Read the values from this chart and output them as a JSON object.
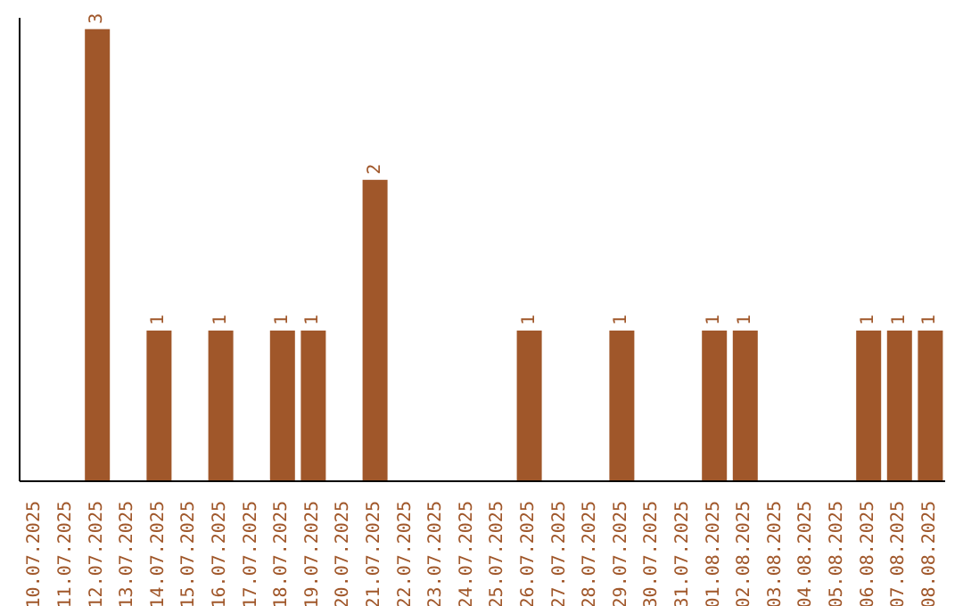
{
  "chart_data": {
    "type": "bar",
    "tick_labels": "x",
    "categories": [
      "10.07.2025",
      "11.07.2025",
      "12.07.2025",
      "13.07.2025",
      "14.07.2025",
      "15.07.2025",
      "16.07.2025",
      "17.07.2025",
      "18.07.2025",
      "19.07.2025",
      "20.07.2025",
      "21.07.2025",
      "22.07.2025",
      "23.07.2025",
      "24.07.2025",
      "25.07.2025",
      "26.07.2025",
      "27.07.2025",
      "28.07.2025",
      "29.07.2025",
      "30.07.2025",
      "31.07.2025",
      "01.08.2025",
      "02.08.2025",
      "03.08.2025",
      "04.08.2025",
      "05.08.2025",
      "06.08.2025",
      "07.08.2025",
      "08.08.2025"
    ],
    "values": [
      0,
      0,
      3,
      0,
      1,
      0,
      1,
      0,
      1,
      1,
      0,
      2,
      0,
      0,
      0,
      0,
      1,
      0,
      0,
      1,
      0,
      0,
      1,
      1,
      0,
      0,
      0,
      1,
      1,
      1
    ],
    "value_labels": [
      null,
      null,
      "3",
      null,
      "1",
      null,
      "1",
      null,
      "1",
      "1",
      null,
      "2",
      null,
      null,
      null,
      null,
      "1",
      null,
      null,
      "1",
      null,
      null,
      "1",
      "1",
      null,
      null,
      null,
      "1",
      "1",
      "1"
    ],
    "color": "#a0572a",
    "grid": false,
    "legend": false
  }
}
